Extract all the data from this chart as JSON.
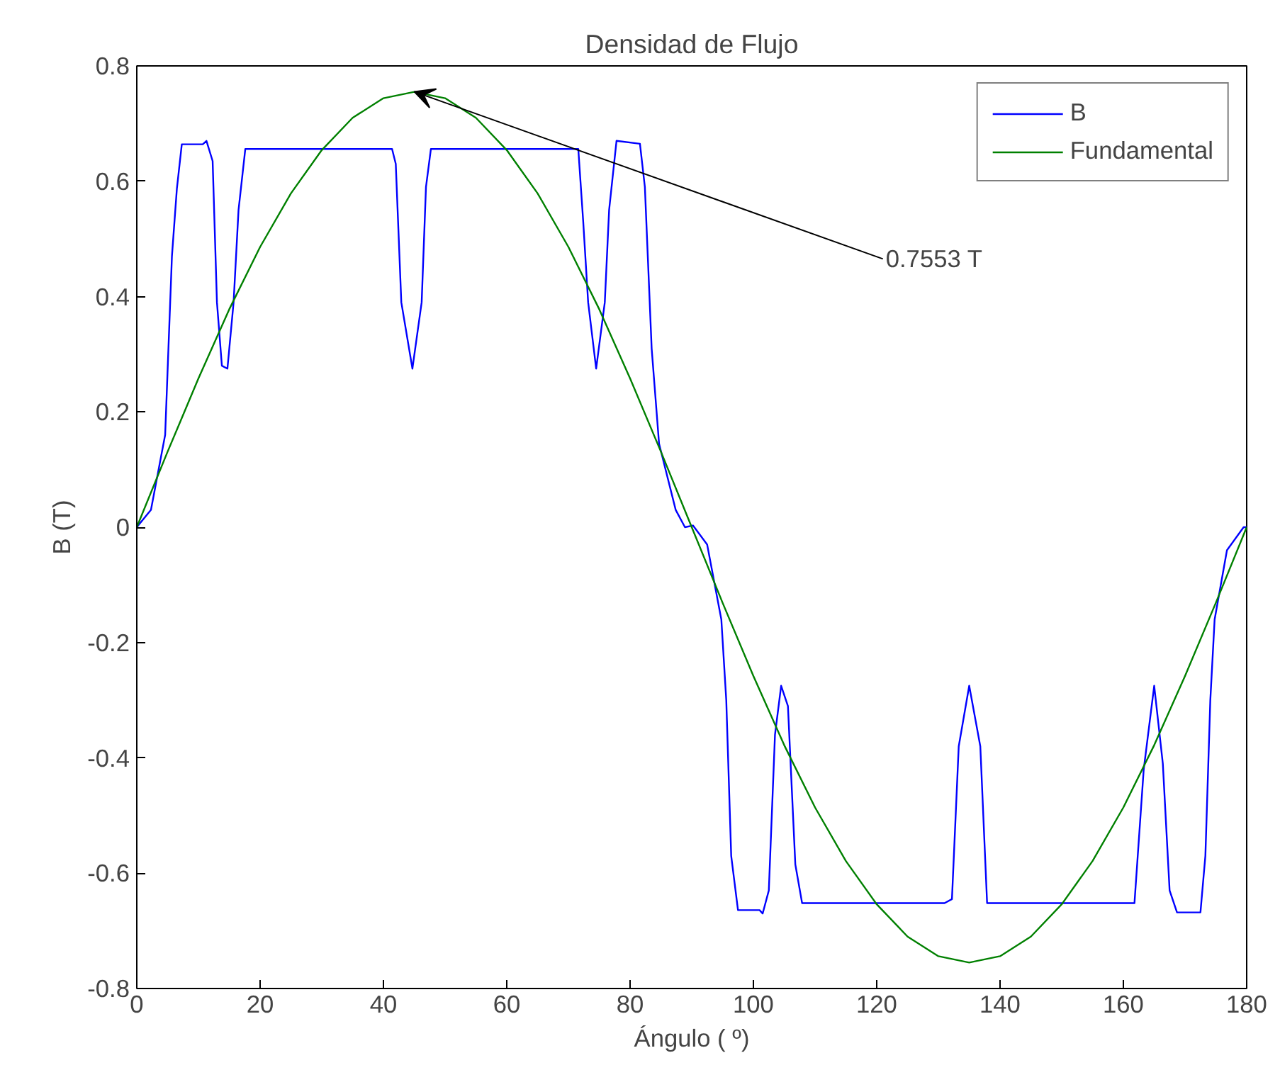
{
  "chart_data": {
    "type": "line",
    "title": "Densidad de Flujo",
    "xlabel": "Ángulo ( º)",
    "ylabel": "B (T)",
    "xlim": [
      0,
      180
    ],
    "ylim": [
      -0.8,
      0.8
    ],
    "xticks": [
      0,
      20,
      40,
      60,
      80,
      100,
      120,
      140,
      160,
      180
    ],
    "yticks": [
      -0.8,
      -0.6,
      -0.4,
      -0.2,
      0,
      0.2,
      0.4,
      0.6,
      0.8
    ],
    "grid": false,
    "legend": "top right",
    "series": [
      {
        "name": "B",
        "color": "#0000ff",
        "x": [
          0,
          2.3,
          4.6,
          5.7,
          6.5,
          7.3,
          10.7,
          11.3,
          12.3,
          13,
          13.8,
          14.7,
          15.7,
          16.5,
          17.6,
          41.4,
          42,
          42.9,
          44.7,
          46.2,
          46.9,
          47.7,
          71.6,
          72.4,
          73.2,
          74.5,
          75.9,
          76.6,
          77.8,
          81.6,
          82.4,
          83.5,
          84.7,
          87.4,
          88.9,
          90.2,
          92.5,
          94.8,
          95.6,
          96.4,
          97.5,
          101,
          101.5,
          102.5,
          103.5,
          104.5,
          105.6,
          106.8,
          107.9,
          131,
          132.2,
          133.3,
          135,
          136.8,
          137.9,
          161.8,
          163.3,
          165,
          166.4,
          167.5,
          168.7,
          172.5,
          173.3,
          174.1,
          174.8,
          176.8,
          179.5,
          180
        ],
        "values": [
          0,
          0.03,
          0.16,
          0.47,
          0.587,
          0.664,
          0.664,
          0.67,
          0.635,
          0.39,
          0.28,
          0.275,
          0.39,
          0.55,
          0.656,
          0.656,
          0.63,
          0.39,
          0.275,
          0.39,
          0.59,
          0.656,
          0.656,
          0.53,
          0.39,
          0.275,
          0.39,
          0.55,
          0.67,
          0.665,
          0.59,
          0.31,
          0.145,
          0.03,
          0,
          0.003,
          -0.03,
          -0.16,
          -0.3,
          -0.57,
          -0.664,
          -0.664,
          -0.67,
          -0.63,
          -0.36,
          -0.275,
          -0.31,
          -0.585,
          -0.652,
          -0.652,
          -0.645,
          -0.38,
          -0.275,
          -0.38,
          -0.652,
          -0.652,
          -0.42,
          -0.275,
          -0.41,
          -0.63,
          -0.668,
          -0.668,
          -0.57,
          -0.3,
          -0.16,
          -0.04,
          0,
          0
        ]
      },
      {
        "name": "Fundamental",
        "color": "#008000",
        "x": [
          0,
          5,
          10,
          15,
          20,
          25,
          30,
          35,
          40,
          45,
          50,
          55,
          60,
          65,
          70,
          75,
          80,
          85,
          90,
          95,
          100,
          105,
          110,
          115,
          120,
          125,
          130,
          135,
          140,
          145,
          150,
          155,
          160,
          165,
          170,
          175,
          180
        ],
        "values": [
          0,
          0.131,
          0.258,
          0.378,
          0.486,
          0.579,
          0.654,
          0.71,
          0.744,
          0.755,
          0.744,
          0.71,
          0.654,
          0.579,
          0.486,
          0.378,
          0.258,
          0.131,
          0,
          -0.131,
          -0.258,
          -0.378,
          -0.486,
          -0.579,
          -0.654,
          -0.71,
          -0.744,
          -0.755,
          -0.744,
          -0.71,
          -0.654,
          -0.579,
          -0.486,
          -0.378,
          -0.258,
          -0.131,
          0
        ]
      }
    ],
    "annotations": [
      {
        "text": "0.7553 T",
        "x": 45,
        "y": 0.7553
      }
    ]
  }
}
